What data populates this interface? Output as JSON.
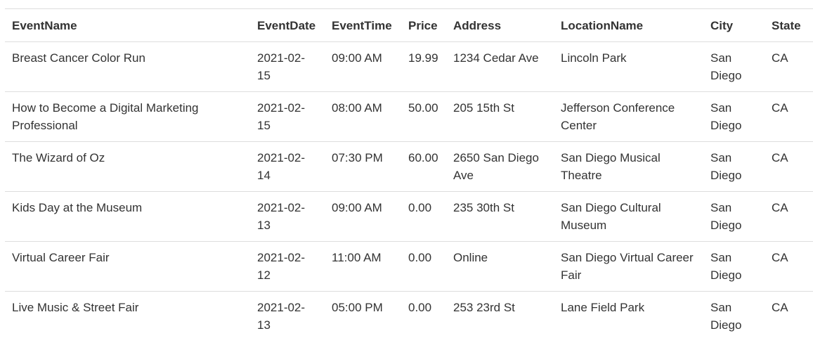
{
  "table": {
    "headers": [
      "EventName",
      "EventDate",
      "EventTime",
      "Price",
      "Address",
      "LocationName",
      "City",
      "State"
    ],
    "rows": [
      [
        "Breast Cancer Color Run",
        "2021-02-15",
        "09:00 AM",
        "19.99",
        "1234 Cedar Ave",
        "Lincoln Park",
        "San Diego",
        "CA"
      ],
      [
        "How to Become a Digital Marketing Professional",
        "2021-02-15",
        "08:00 AM",
        "50.00",
        "205 15th St",
        "Jefferson Conference Center",
        "San Diego",
        "CA"
      ],
      [
        "The Wizard of Oz",
        "2021-02-14",
        "07:30 PM",
        "60.00",
        "2650 San Diego Ave",
        "San Diego Musical Theatre",
        "San Diego",
        "CA"
      ],
      [
        "Kids Day at the Museum",
        "2021-02-13",
        "09:00 AM",
        "0.00",
        "235 30th St",
        "San Diego Cultural Museum",
        "San Diego",
        "CA"
      ],
      [
        "Virtual Career Fair",
        "2021-02-12",
        "11:00 AM",
        "0.00",
        "Online",
        "San Diego Virtual Career Fair",
        "San Diego",
        "CA"
      ],
      [
        "Live Music & Street Fair",
        "2021-02-13",
        "05:00 PM",
        "0.00",
        "253 23rd St",
        "Lane Field Park",
        "San Diego",
        "CA"
      ]
    ]
  }
}
